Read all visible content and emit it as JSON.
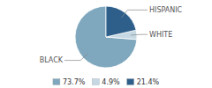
{
  "chart_data": {
    "type": "pie",
    "categories": [
      "BLACK",
      "WHITE",
      "HISPANIC"
    ],
    "values": [
      73.7,
      4.9,
      21.4
    ],
    "value_labels": [
      "73.7%",
      "4.9%",
      "21.4%"
    ],
    "colors": [
      "#7FA8BE",
      "#C5D8E3",
      "#2E5F8A"
    ],
    "legend": "bottom"
  }
}
